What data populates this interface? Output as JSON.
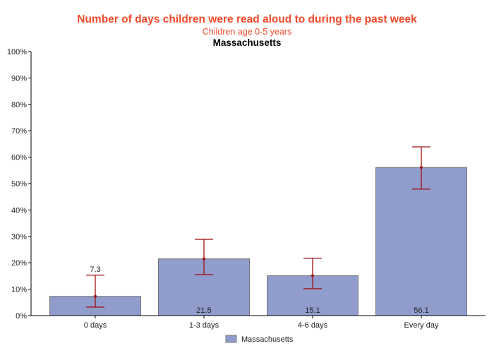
{
  "chart_data": {
    "type": "bar",
    "title": "Number of days children were read aloud to during the past week",
    "subtitle": "Children age 0-5 years",
    "subtitle2": "Massachusetts",
    "categories": [
      "0 days",
      "1-3 days",
      "4-6 days",
      "Every day"
    ],
    "series": [
      {
        "name": "Massachusetts",
        "values": [
          7.3,
          21.5,
          15.1,
          56.1
        ],
        "data_labels": [
          "7.3",
          "21.5",
          "15.1",
          "56.1"
        ],
        "ci_lower": [
          3.2,
          15.5,
          10.2,
          47.9
        ],
        "ci_upper": [
          15.3,
          28.9,
          21.7,
          63.9
        ]
      }
    ],
    "ylim": [
      0,
      100
    ],
    "yticks": [
      "0%",
      "10%",
      "20%",
      "30%",
      "40%",
      "50%",
      "60%",
      "70%",
      "80%",
      "90%",
      "100%"
    ],
    "grid": false,
    "legend": "bottom",
    "colors": {
      "bar": "#909ccc",
      "bar_border": "#777777",
      "error_bar": "#a01010",
      "title": "#f04a2a"
    }
  }
}
